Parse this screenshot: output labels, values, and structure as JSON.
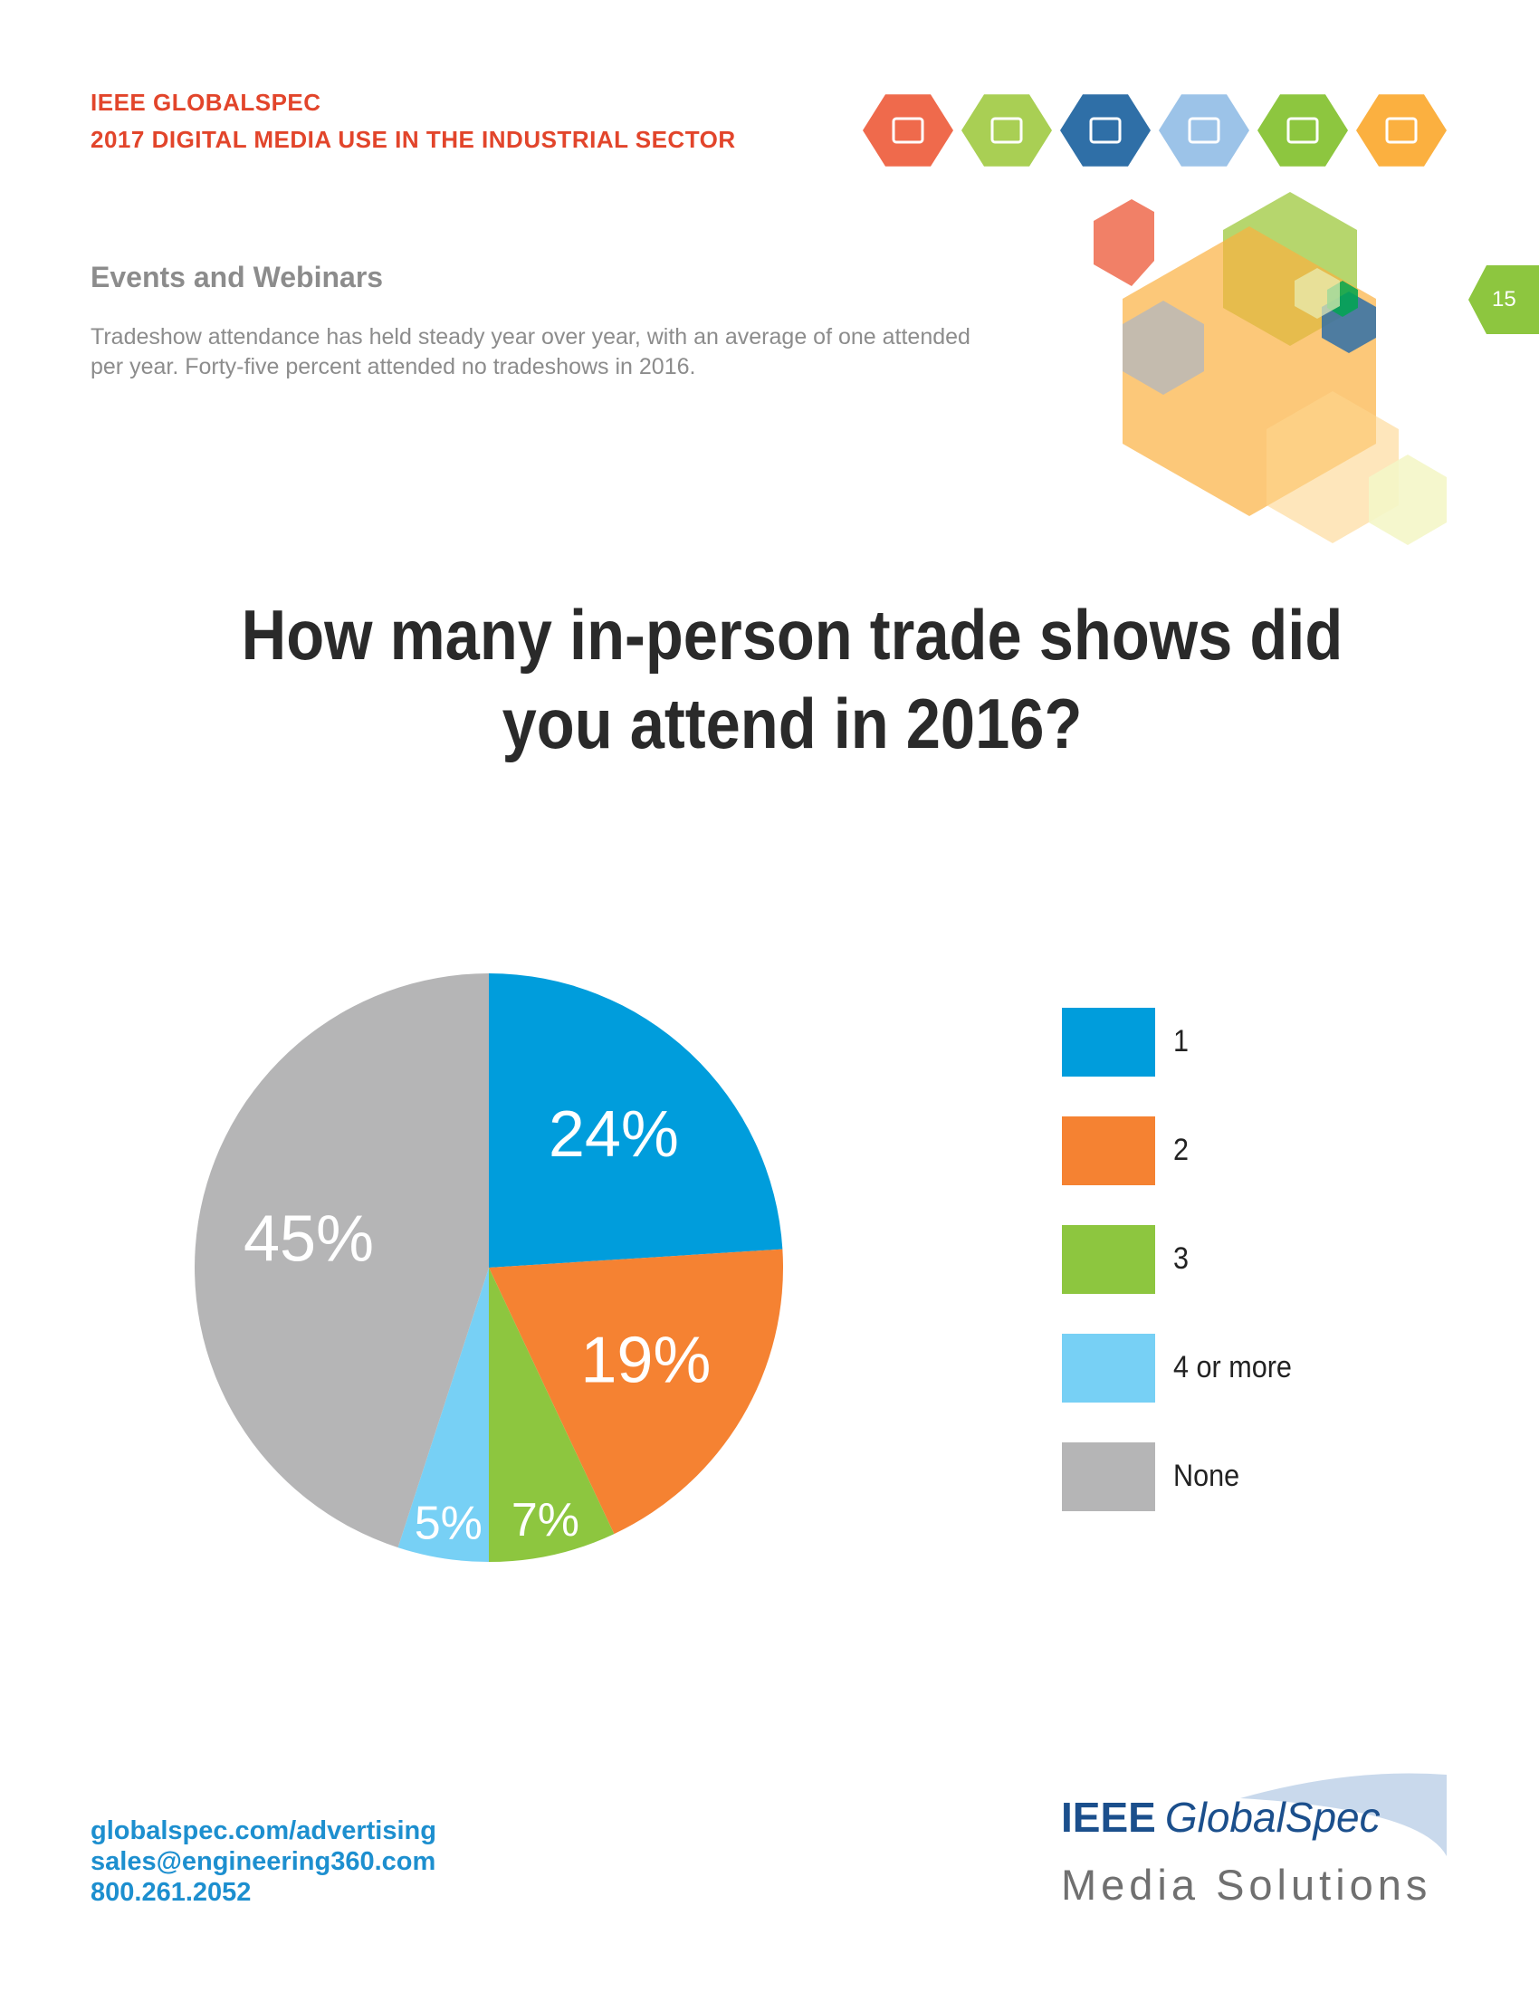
{
  "header": {
    "line1": "IEEE GLOBALSPEC",
    "line2": "2017 DIGITAL MEDIA USE IN THE INDUSTRIAL SECTOR",
    "icons": [
      {
        "name": "newspaper-icon",
        "color": "#ef6a4c"
      },
      {
        "name": "website-icon",
        "color": "#a9cf54"
      },
      {
        "name": "presentation-icon",
        "color": "#2f6fa7"
      },
      {
        "name": "email-target-icon",
        "color": "#9cc3e8"
      },
      {
        "name": "book-icon",
        "color": "#8dc63f"
      },
      {
        "name": "search-icon",
        "color": "#fbb040"
      }
    ]
  },
  "page_number": "15",
  "section": {
    "heading": "Events and Webinars",
    "intro": "Tradeshow attendance has held steady year over year, with an average of one attended per year. Forty-five percent attended no tradeshows in 2016."
  },
  "chart_data": {
    "type": "pie",
    "title": "How many in-person trade shows did you attend in 2016?",
    "categories": [
      "1",
      "2",
      "3",
      "4 or more",
      "None"
    ],
    "values": [
      24,
      19,
      7,
      5,
      45
    ],
    "value_labels": [
      "24%",
      "19%",
      "7%",
      "5%",
      "45%"
    ],
    "colors": [
      "#009ddc",
      "#f58232",
      "#8dc63f",
      "#77d0f5",
      "#b5b5b6"
    ],
    "legend_position": "right"
  },
  "footer": {
    "url": "globalspec.com/advertising",
    "email": "sales@engineering360.com",
    "phone": "800.261.2052"
  },
  "logo": {
    "brand_prefix": "IEEE",
    "brand_name": "GlobalSpec",
    "tagline": "Media Solutions"
  }
}
